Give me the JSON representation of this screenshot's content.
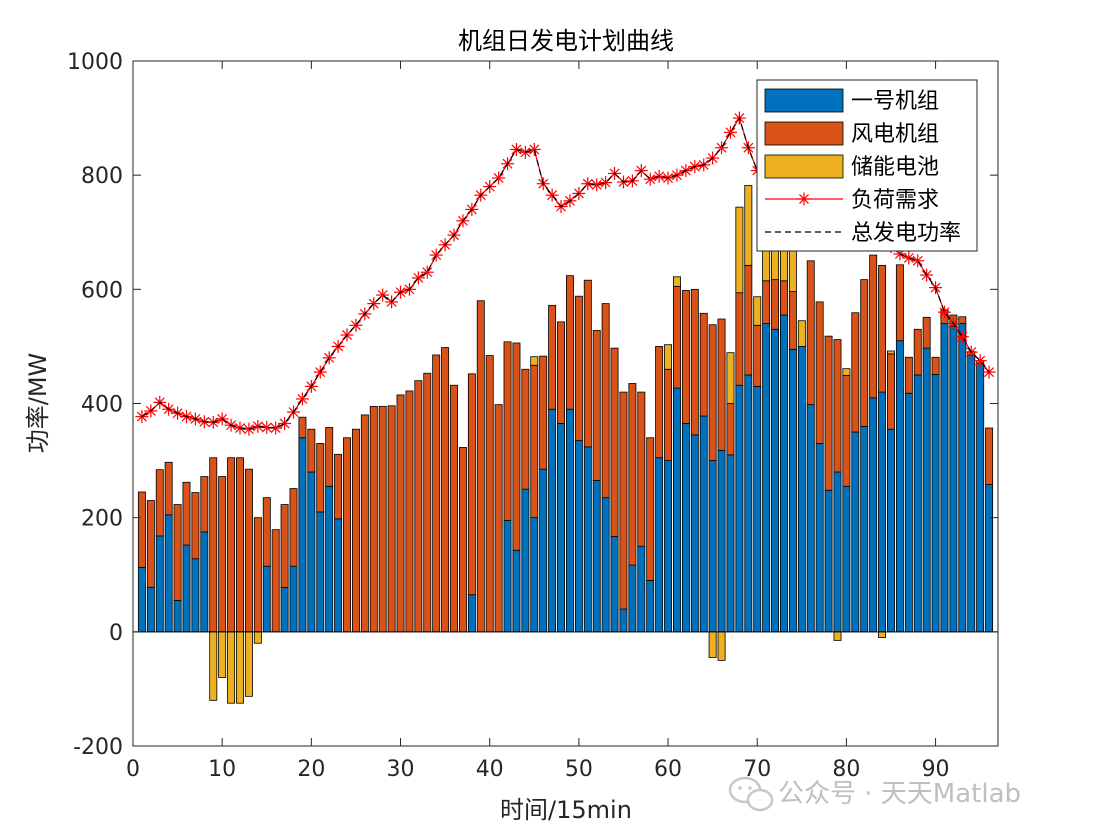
{
  "chart_data": {
    "type": "bar",
    "title": "机组日发电计划曲线",
    "xlabel": "时间/15min",
    "ylabel": "功率/MW",
    "xlim": [
      0,
      97
    ],
    "ylim": [
      -200,
      1000
    ],
    "xticks": [
      0,
      10,
      20,
      30,
      40,
      50,
      60,
      70,
      80,
      90
    ],
    "yticks": [
      -200,
      0,
      200,
      400,
      600,
      800,
      1000
    ],
    "grid": false,
    "legend_position": "top-right",
    "x": [
      1,
      2,
      3,
      4,
      5,
      6,
      7,
      8,
      9,
      10,
      11,
      12,
      13,
      14,
      15,
      16,
      17,
      18,
      19,
      20,
      21,
      22,
      23,
      24,
      25,
      26,
      27,
      28,
      29,
      30,
      31,
      32,
      33,
      34,
      35,
      36,
      37,
      38,
      39,
      40,
      41,
      42,
      43,
      44,
      45,
      46,
      47,
      48,
      49,
      50,
      51,
      52,
      53,
      54,
      55,
      56,
      57,
      58,
      59,
      60,
      61,
      62,
      63,
      64,
      65,
      66,
      67,
      68,
      69,
      70,
      71,
      72,
      73,
      74,
      75,
      76,
      77,
      78,
      79,
      80,
      81,
      82,
      83,
      84,
      85,
      86,
      87,
      88,
      89,
      90,
      91,
      92,
      93,
      94,
      95,
      96
    ],
    "series": [
      {
        "name": "一号机组",
        "kind": "bar",
        "color": "#0072BD",
        "values": [
          113,
          78,
          168,
          205,
          55,
          152,
          128,
          175,
          0,
          0,
          0,
          0,
          0,
          0,
          115,
          0,
          78,
          115,
          340,
          280,
          210,
          255,
          198,
          0,
          0,
          0,
          0,
          0,
          0,
          0,
          0,
          0,
          0,
          0,
          0,
          0,
          0,
          65,
          0,
          0,
          0,
          195,
          143,
          250,
          200,
          285,
          390,
          365,
          390,
          335,
          324,
          265,
          235,
          167,
          40,
          117,
          150,
          90,
          305,
          300,
          427,
          365,
          345,
          378,
          300,
          318,
          310,
          432,
          450,
          430,
          540,
          530,
          555,
          495,
          500,
          398,
          330,
          248,
          280,
          255,
          350,
          360,
          410,
          420,
          355,
          510,
          418,
          450,
          497,
          451,
          540,
          535,
          540,
          485,
          470,
          258
        ],
        "stack_index": 2
      },
      {
        "name": "风电机组",
        "kind": "bar",
        "color": "#D95319",
        "values": [
          132,
          152,
          116,
          92,
          168,
          110,
          116,
          97,
          305,
          272,
          305,
          305,
          285,
          200,
          120,
          179,
          145,
          136,
          36,
          75,
          120,
          103,
          113,
          340,
          355,
          380,
          395,
          395,
          396,
          415,
          422,
          440,
          453,
          485,
          498,
          432,
          323,
          387,
          580,
          484,
          398,
          313,
          363,
          210,
          267,
          198,
          182,
          178,
          234,
          253,
          292,
          263,
          340,
          330,
          380,
          318,
          270,
          250,
          195,
          160,
          178,
          233,
          255,
          180,
          238,
          230,
          90,
          162,
          192,
          107,
          75,
          87,
          60,
          101,
          0,
          252,
          248,
          270,
          232,
          194,
          209,
          257,
          250,
          222,
          132,
          133,
          63,
          80,
          54,
          30,
          24,
          20,
          12,
          0,
          0,
          99
        ],
        "stack_index": 1
      },
      {
        "name": "储能电池",
        "kind": "bar",
        "color": "#EDB120",
        "values": [
          0,
          0,
          0,
          0,
          0,
          0,
          0,
          0,
          -120,
          -80,
          -125,
          -125,
          -113,
          -20,
          0,
          0,
          0,
          0,
          0,
          0,
          0,
          0,
          0,
          0,
          0,
          0,
          0,
          0,
          0,
          0,
          0,
          0,
          0,
          0,
          0,
          0,
          0,
          0,
          0,
          0,
          0,
          0,
          0,
          0,
          15,
          0,
          0,
          0,
          0,
          0,
          0,
          0,
          0,
          0,
          0,
          0,
          0,
          0,
          0,
          43,
          17,
          0,
          0,
          0,
          -45,
          -50,
          89,
          150,
          140,
          50,
          63,
          62,
          105,
          100,
          45,
          0,
          0,
          0,
          -15,
          12,
          0,
          0,
          0,
          -10,
          5,
          0,
          0,
          0,
          0,
          0,
          0,
          0,
          0,
          6,
          5,
          0
        ],
        "stack_index": 0
      },
      {
        "name": "负荷需求",
        "kind": "line",
        "color": "#FF0000",
        "marker": "*",
        "values": [
          377,
          387,
          402,
          390,
          383,
          377,
          373,
          368,
          367,
          373,
          362,
          357,
          355,
          360,
          358,
          357,
          365,
          385,
          408,
          430,
          455,
          480,
          500,
          520,
          537,
          557,
          575,
          590,
          578,
          595,
          600,
          620,
          630,
          660,
          678,
          695,
          720,
          740,
          765,
          780,
          795,
          820,
          845,
          840,
          845,
          785,
          765,
          745,
          755,
          768,
          785,
          783,
          787,
          803,
          788,
          790,
          808,
          793,
          798,
          795,
          800,
          808,
          815,
          818,
          830,
          848,
          875,
          900,
          848,
          808,
          800,
          818,
          830,
          838,
          780,
          770,
          738,
          738,
          745,
          745,
          740,
          718,
          705,
          695,
          675,
          662,
          655,
          650,
          625,
          603,
          560,
          540,
          517,
          490,
          475,
          455
        ]
      },
      {
        "name": "总发电功率",
        "kind": "line",
        "color": "#000000",
        "dash": "dashed",
        "values": [
          377,
          387,
          402,
          390,
          383,
          377,
          373,
          368,
          367,
          373,
          362,
          357,
          355,
          360,
          358,
          357,
          365,
          385,
          408,
          430,
          455,
          480,
          500,
          520,
          537,
          557,
          575,
          590,
          578,
          595,
          600,
          620,
          630,
          660,
          678,
          695,
          720,
          740,
          765,
          780,
          795,
          820,
          845,
          840,
          845,
          785,
          765,
          745,
          755,
          768,
          785,
          783,
          787,
          803,
          788,
          790,
          808,
          793,
          798,
          795,
          800,
          808,
          815,
          818,
          830,
          848,
          875,
          900,
          848,
          808,
          800,
          818,
          830,
          838,
          780,
          770,
          738,
          738,
          745,
          745,
          740,
          718,
          705,
          695,
          675,
          662,
          655,
          650,
          625,
          603,
          560,
          540,
          517,
          490,
          475,
          455
        ]
      }
    ]
  },
  "watermark": {
    "text": "公众号 · 天天Matlab"
  }
}
